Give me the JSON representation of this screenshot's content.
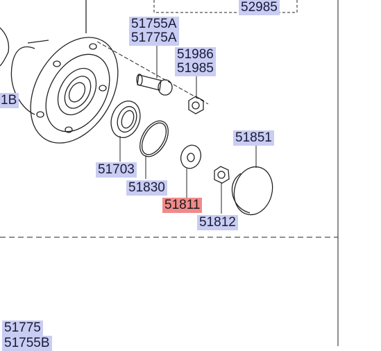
{
  "highlight_color": "#f08a8a",
  "label_color": "#c9cdf2",
  "parts": {
    "p52985": "52985",
    "p51755a": "51755A",
    "p51775a": "51775A",
    "p51986": "51986",
    "p51985": "51985",
    "p1b": "1B",
    "p51851": "51851",
    "p51703": "51703",
    "p51830": "51830",
    "p51811": "51811",
    "p51812": "51812",
    "p51775": "51775",
    "p51755b": "51755B"
  },
  "selected_part": "51811"
}
